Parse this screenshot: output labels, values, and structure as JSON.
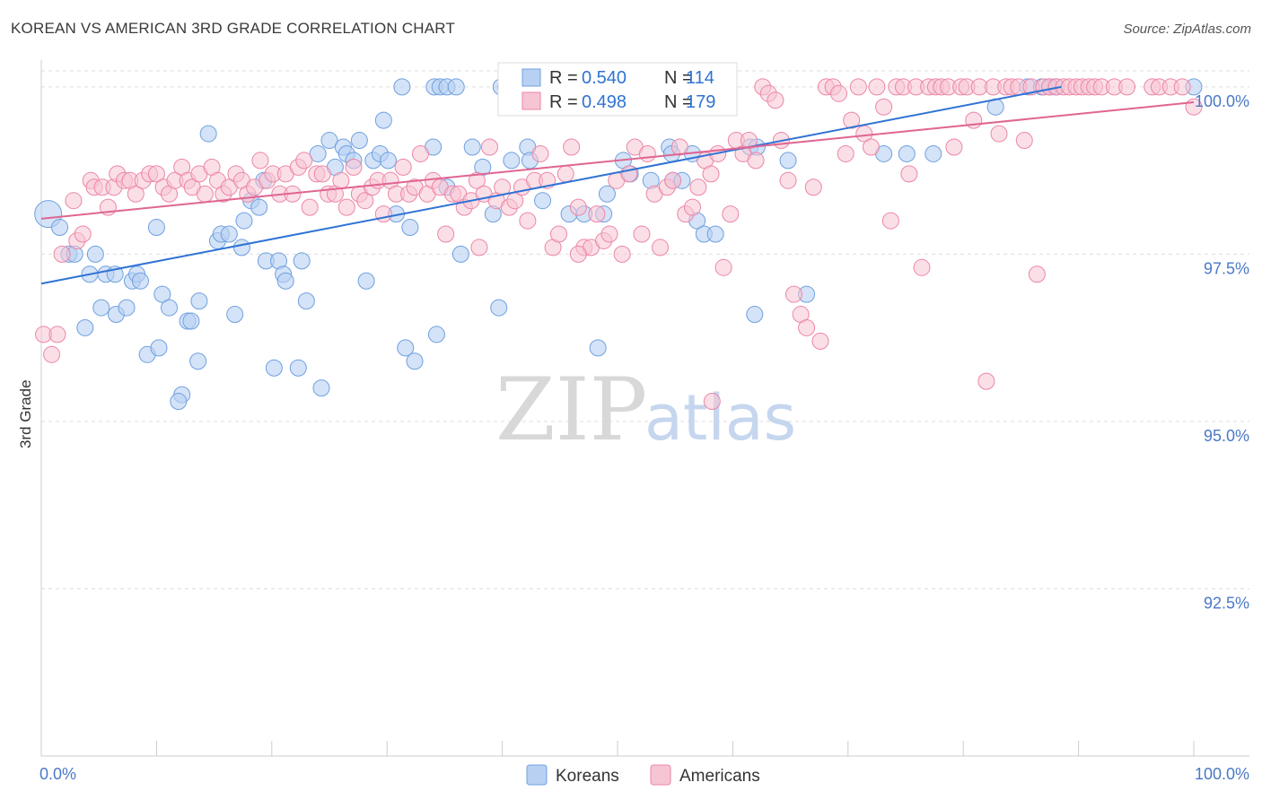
{
  "title": "KOREAN VS AMERICAN 3RD GRADE CORRELATION CHART",
  "source": "Source: ZipAtlas.com",
  "watermark": {
    "zip": "ZIP",
    "atlas": "atlas"
  },
  "colors": {
    "korean": "#6fa0e0",
    "korean_fill": "#b8d0f2",
    "american": "#ec86a6",
    "american_fill": "#f7c4d4",
    "korean_line": "#2f73d4",
    "american_line": "#e06591",
    "tick_label": "#4a78c8",
    "grid": "#dddddd"
  },
  "stats": [
    {
      "series": "Koreans",
      "r_label": "R =",
      "r_value": "0.540",
      "n_label": "N =",
      "n_value": "114"
    },
    {
      "series": "Americans",
      "r_label": "R =",
      "r_value": "0.498",
      "n_label": "N =",
      "n_value": "179"
    }
  ],
  "chart_data": {
    "type": "scatter",
    "title": "KOREAN VS AMERICAN 3RD GRADE CORRELATION CHART",
    "xlabel": "",
    "ylabel": "3rd Grade",
    "xlim": [
      0,
      100
    ],
    "ylim": [
      90.0,
      100.4
    ],
    "x_tick_labels": [
      "0.0%",
      "100.0%"
    ],
    "y_ticks": [
      92.5,
      95.0,
      97.5,
      100.0
    ],
    "y_tick_labels": [
      "92.5%",
      "95.0%",
      "97.5%",
      "100.0%"
    ],
    "grid": true,
    "legend_position": "bottom-center",
    "series": [
      {
        "name": "Koreans",
        "trendline": {
          "x": [
            0,
            88.5
          ],
          "y": [
            97.06,
            100.0
          ]
        },
        "points": [
          [
            0.6,
            98.1
          ],
          [
            1.6,
            97.9
          ],
          [
            2.4,
            97.5
          ],
          [
            2.9,
            97.5
          ],
          [
            4.2,
            97.2
          ],
          [
            4.7,
            97.5
          ],
          [
            5.2,
            96.7
          ],
          [
            5.6,
            97.2
          ],
          [
            3.8,
            96.4
          ],
          [
            6.4,
            97.2
          ],
          [
            6.5,
            96.6
          ],
          [
            7.4,
            96.7
          ],
          [
            7.9,
            97.1
          ],
          [
            8.3,
            97.2
          ],
          [
            8.6,
            97.1
          ],
          [
            9.2,
            96.0
          ],
          [
            10.2,
            96.1
          ],
          [
            10.5,
            96.9
          ],
          [
            11.1,
            96.7
          ],
          [
            12.7,
            96.5
          ],
          [
            13.0,
            96.5
          ],
          [
            13.7,
            96.8
          ],
          [
            10.0,
            97.9
          ],
          [
            12.2,
            95.4
          ],
          [
            11.9,
            95.3
          ],
          [
            13.6,
            95.9
          ],
          [
            14.5,
            99.3
          ],
          [
            15.3,
            97.7
          ],
          [
            15.6,
            97.8
          ],
          [
            16.3,
            97.8
          ],
          [
            16.8,
            96.6
          ],
          [
            17.4,
            97.6
          ],
          [
            17.6,
            98.0
          ],
          [
            18.2,
            98.3
          ],
          [
            18.9,
            98.2
          ],
          [
            19.3,
            98.6
          ],
          [
            19.5,
            97.4
          ],
          [
            20.2,
            95.8
          ],
          [
            20.6,
            97.4
          ],
          [
            21.0,
            97.2
          ],
          [
            21.2,
            97.1
          ],
          [
            22.3,
            95.8
          ],
          [
            22.6,
            97.4
          ],
          [
            23.0,
            96.8
          ],
          [
            24.0,
            99.0
          ],
          [
            24.3,
            95.5
          ],
          [
            25.0,
            99.2
          ],
          [
            25.5,
            98.8
          ],
          [
            26.2,
            99.1
          ],
          [
            26.5,
            99.0
          ],
          [
            27.1,
            98.9
          ],
          [
            27.6,
            99.2
          ],
          [
            28.2,
            97.1
          ],
          [
            28.8,
            98.9
          ],
          [
            29.4,
            99.0
          ],
          [
            29.7,
            99.5
          ],
          [
            30.1,
            98.9
          ],
          [
            30.8,
            98.1
          ],
          [
            31.6,
            96.1
          ],
          [
            32.0,
            97.9
          ],
          [
            32.4,
            95.9
          ],
          [
            34.0,
            99.1
          ],
          [
            34.3,
            96.3
          ],
          [
            35.2,
            98.5
          ],
          [
            36.4,
            97.5
          ],
          [
            37.4,
            99.1
          ],
          [
            38.3,
            98.8
          ],
          [
            39.2,
            98.1
          ],
          [
            39.7,
            96.7
          ],
          [
            40.8,
            98.9
          ],
          [
            42.2,
            99.1
          ],
          [
            42.4,
            98.9
          ],
          [
            43.5,
            98.3
          ],
          [
            45.8,
            98.1
          ],
          [
            47.1,
            98.1
          ],
          [
            48.3,
            96.1
          ],
          [
            48.8,
            98.1
          ],
          [
            49.1,
            98.4
          ],
          [
            50.5,
            98.9
          ],
          [
            51.1,
            98.7
          ],
          [
            52.9,
            98.6
          ],
          [
            54.5,
            99.1
          ],
          [
            54.7,
            99.0
          ],
          [
            54.8,
            98.6
          ],
          [
            55.6,
            98.6
          ],
          [
            56.5,
            99.0
          ],
          [
            56.9,
            98.0
          ],
          [
            57.5,
            97.8
          ],
          [
            58.5,
            97.8
          ],
          [
            61.5,
            99.1
          ],
          [
            62.1,
            99.1
          ],
          [
            61.9,
            96.6
          ],
          [
            64.8,
            98.9
          ],
          [
            66.4,
            96.9
          ],
          [
            73.1,
            99.0
          ],
          [
            75.1,
            99.0
          ],
          [
            77.4,
            99.0
          ],
          [
            82.8,
            99.7
          ],
          [
            85.6,
            100.0
          ],
          [
            86.8,
            100.0
          ],
          [
            87.5,
            100.0
          ],
          [
            88.0,
            100.0
          ],
          [
            100.0,
            100.0
          ],
          [
            31.3,
            100.0
          ],
          [
            34.1,
            100.0
          ],
          [
            34.6,
            100.0
          ],
          [
            35.2,
            100.0
          ],
          [
            36.0,
            100.0
          ],
          [
            39.9,
            100.0
          ],
          [
            40.3,
            100.0
          ],
          [
            43.1,
            100.0
          ],
          [
            44.4,
            100.0
          ],
          [
            45.0,
            100.0
          ],
          [
            46.7,
            100.0
          ]
        ]
      },
      {
        "name": "Americans",
        "trendline": {
          "x": [
            0,
            100
          ],
          "y": [
            98.03,
            99.77
          ]
        },
        "points": [
          [
            0.2,
            96.3
          ],
          [
            0.9,
            96.0
          ],
          [
            1.4,
            96.3
          ],
          [
            1.8,
            97.5
          ],
          [
            2.8,
            98.3
          ],
          [
            3.1,
            97.7
          ],
          [
            3.6,
            97.8
          ],
          [
            4.3,
            98.6
          ],
          [
            4.6,
            98.5
          ],
          [
            5.3,
            98.5
          ],
          [
            5.8,
            98.2
          ],
          [
            6.3,
            98.5
          ],
          [
            6.6,
            98.7
          ],
          [
            7.2,
            98.6
          ],
          [
            7.7,
            98.6
          ],
          [
            8.2,
            98.4
          ],
          [
            8.8,
            98.6
          ],
          [
            9.4,
            98.7
          ],
          [
            10.0,
            98.7
          ],
          [
            10.6,
            98.5
          ],
          [
            11.1,
            98.4
          ],
          [
            11.6,
            98.6
          ],
          [
            12.2,
            98.8
          ],
          [
            12.7,
            98.6
          ],
          [
            13.1,
            98.5
          ],
          [
            13.7,
            98.7
          ],
          [
            14.2,
            98.4
          ],
          [
            14.8,
            98.8
          ],
          [
            15.3,
            98.6
          ],
          [
            15.8,
            98.4
          ],
          [
            16.3,
            98.5
          ],
          [
            16.9,
            98.7
          ],
          [
            17.4,
            98.6
          ],
          [
            17.9,
            98.4
          ],
          [
            18.5,
            98.5
          ],
          [
            19.0,
            98.9
          ],
          [
            19.6,
            98.6
          ],
          [
            20.1,
            98.7
          ],
          [
            20.7,
            98.4
          ],
          [
            21.2,
            98.7
          ],
          [
            21.8,
            98.4
          ],
          [
            22.3,
            98.8
          ],
          [
            22.8,
            98.9
          ],
          [
            23.3,
            98.2
          ],
          [
            23.9,
            98.7
          ],
          [
            24.4,
            98.7
          ],
          [
            24.9,
            98.4
          ],
          [
            25.5,
            98.4
          ],
          [
            26.0,
            98.6
          ],
          [
            26.5,
            98.2
          ],
          [
            27.1,
            98.8
          ],
          [
            27.6,
            98.4
          ],
          [
            28.1,
            98.3
          ],
          [
            28.7,
            98.5
          ],
          [
            29.2,
            98.6
          ],
          [
            29.7,
            98.1
          ],
          [
            30.3,
            98.6
          ],
          [
            30.8,
            98.4
          ],
          [
            31.4,
            98.8
          ],
          [
            31.9,
            98.4
          ],
          [
            32.4,
            98.5
          ],
          [
            32.9,
            99.0
          ],
          [
            33.5,
            98.4
          ],
          [
            34.0,
            98.6
          ],
          [
            34.6,
            98.5
          ],
          [
            35.1,
            97.8
          ],
          [
            35.7,
            98.4
          ],
          [
            36.2,
            98.4
          ],
          [
            36.7,
            98.2
          ],
          [
            37.3,
            98.3
          ],
          [
            37.8,
            98.6
          ],
          [
            38.4,
            98.4
          ],
          [
            38.9,
            99.1
          ],
          [
            39.5,
            98.3
          ],
          [
            40.0,
            98.5
          ],
          [
            40.6,
            98.2
          ],
          [
            41.1,
            98.3
          ],
          [
            41.7,
            98.5
          ],
          [
            42.2,
            98.0
          ],
          [
            42.8,
            98.6
          ],
          [
            43.3,
            99.0
          ],
          [
            43.9,
            98.6
          ],
          [
            44.4,
            97.6
          ],
          [
            44.9,
            97.8
          ],
          [
            45.5,
            98.7
          ],
          [
            46.0,
            99.1
          ],
          [
            46.6,
            98.2
          ],
          [
            47.1,
            97.6
          ],
          [
            47.7,
            97.6
          ],
          [
            48.2,
            98.1
          ],
          [
            48.8,
            97.7
          ],
          [
            49.3,
            97.8
          ],
          [
            49.9,
            98.6
          ],
          [
            50.4,
            97.5
          ],
          [
            51.0,
            98.7
          ],
          [
            51.5,
            99.1
          ],
          [
            52.1,
            97.8
          ],
          [
            52.6,
            99.0
          ],
          [
            53.2,
            98.4
          ],
          [
            53.7,
            97.6
          ],
          [
            54.3,
            98.5
          ],
          [
            54.8,
            98.6
          ],
          [
            55.4,
            99.1
          ],
          [
            55.9,
            98.1
          ],
          [
            56.5,
            98.2
          ],
          [
            57.0,
            98.5
          ],
          [
            57.6,
            98.9
          ],
          [
            58.1,
            98.7
          ],
          [
            58.7,
            99.0
          ],
          [
            59.2,
            97.3
          ],
          [
            59.8,
            98.1
          ],
          [
            60.3,
            99.2
          ],
          [
            60.9,
            99.0
          ],
          [
            61.4,
            99.2
          ],
          [
            62.0,
            98.9
          ],
          [
            62.6,
            100.0
          ],
          [
            63.1,
            99.9
          ],
          [
            63.7,
            99.8
          ],
          [
            64.2,
            99.2
          ],
          [
            64.8,
            98.6
          ],
          [
            65.3,
            96.9
          ],
          [
            65.9,
            96.6
          ],
          [
            66.4,
            96.4
          ],
          [
            67.0,
            98.5
          ],
          [
            67.6,
            96.2
          ],
          [
            68.1,
            100.0
          ],
          [
            68.7,
            100.0
          ],
          [
            69.2,
            99.9
          ],
          [
            69.8,
            99.0
          ],
          [
            70.3,
            99.5
          ],
          [
            70.9,
            100.0
          ],
          [
            71.4,
            99.3
          ],
          [
            72.0,
            99.1
          ],
          [
            72.5,
            100.0
          ],
          [
            73.1,
            99.7
          ],
          [
            73.7,
            98.0
          ],
          [
            74.2,
            100.0
          ],
          [
            74.8,
            100.0
          ],
          [
            75.3,
            98.7
          ],
          [
            75.9,
            100.0
          ],
          [
            76.4,
            97.3
          ],
          [
            77.0,
            100.0
          ],
          [
            77.6,
            100.0
          ],
          [
            78.1,
            100.0
          ],
          [
            78.7,
            100.0
          ],
          [
            79.2,
            99.1
          ],
          [
            79.8,
            100.0
          ],
          [
            80.3,
            100.0
          ],
          [
            80.9,
            99.5
          ],
          [
            81.4,
            100.0
          ],
          [
            82.0,
            95.6
          ],
          [
            82.6,
            100.0
          ],
          [
            83.1,
            99.3
          ],
          [
            83.7,
            100.0
          ],
          [
            84.2,
            100.0
          ],
          [
            84.8,
            100.0
          ],
          [
            85.3,
            99.2
          ],
          [
            85.9,
            100.0
          ],
          [
            86.4,
            97.2
          ],
          [
            87.0,
            100.0
          ],
          [
            87.5,
            100.0
          ],
          [
            88.1,
            100.0
          ],
          [
            88.7,
            100.0
          ],
          [
            89.2,
            100.0
          ],
          [
            89.8,
            100.0
          ],
          [
            90.3,
            100.0
          ],
          [
            90.9,
            100.0
          ],
          [
            91.4,
            100.0
          ],
          [
            92.0,
            100.0
          ],
          [
            93.1,
            100.0
          ],
          [
            94.2,
            100.0
          ],
          [
            96.4,
            100.0
          ],
          [
            97.0,
            100.0
          ],
          [
            98.0,
            100.0
          ],
          [
            99.0,
            100.0
          ],
          [
            100.0,
            99.7
          ],
          [
            58.2,
            95.3
          ],
          [
            38.0,
            97.6
          ],
          [
            46.6,
            97.5
          ]
        ]
      }
    ]
  },
  "legend": [
    {
      "key": "korean",
      "label": "Koreans"
    },
    {
      "key": "american",
      "label": "Americans"
    }
  ]
}
